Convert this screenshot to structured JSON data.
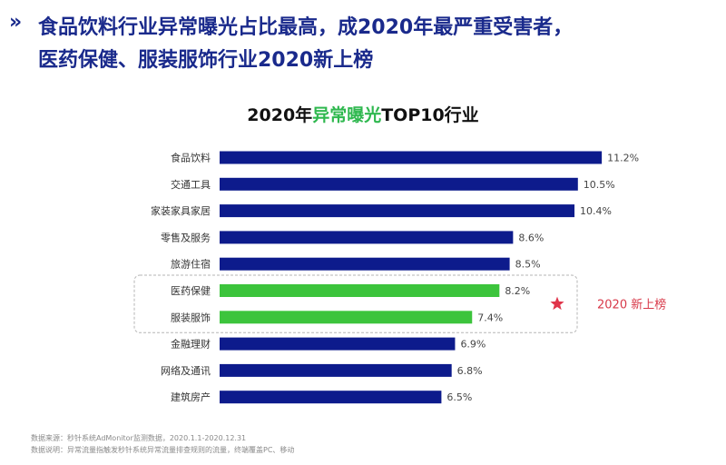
{
  "headline": {
    "line1": "食品饮料行业异常曝光占比最高，成2020年最严重受害者，",
    "line2": "医药保健、服装服饰行业2020新上榜"
  },
  "chart_data": {
    "type": "bar",
    "orientation": "horizontal",
    "title_prefix": "2020年",
    "title_highlight": "异常曝光",
    "title_suffix": "TOP10行业",
    "categories": [
      "食品饮料",
      "交通工具",
      "家装家具家居",
      "零售及服务",
      "旅游住宿",
      "医药保健",
      "服装服饰",
      "金融理财",
      "网络及通讯",
      "建筑房产"
    ],
    "values": [
      11.2,
      10.5,
      10.4,
      8.6,
      8.5,
      8.2,
      7.4,
      6.9,
      6.8,
      6.5
    ],
    "value_labels": [
      "11.2%",
      "10.5%",
      "10.4%",
      "8.6%",
      "8.5%",
      "8.2%",
      "7.4%",
      "6.9%",
      "6.8%",
      "6.5%"
    ],
    "highlighted": [
      false,
      false,
      false,
      false,
      false,
      true,
      true,
      false,
      false,
      false
    ],
    "colors": {
      "default": "#0d1b8c",
      "highlight": "#3cc43c",
      "star": "#e0344a",
      "annotation": "#d83a4a"
    },
    "annotation": {
      "text": "2020 新上榜",
      "marker": "star-icon"
    }
  },
  "footnotes": [
    "数据来源：秒针系统AdMonitor监测数据，2020.1.1-2020.12.31",
    "数据说明：异常流量指触发秒针系统异常流量排查规则的流量，终端覆盖PC、移动"
  ]
}
